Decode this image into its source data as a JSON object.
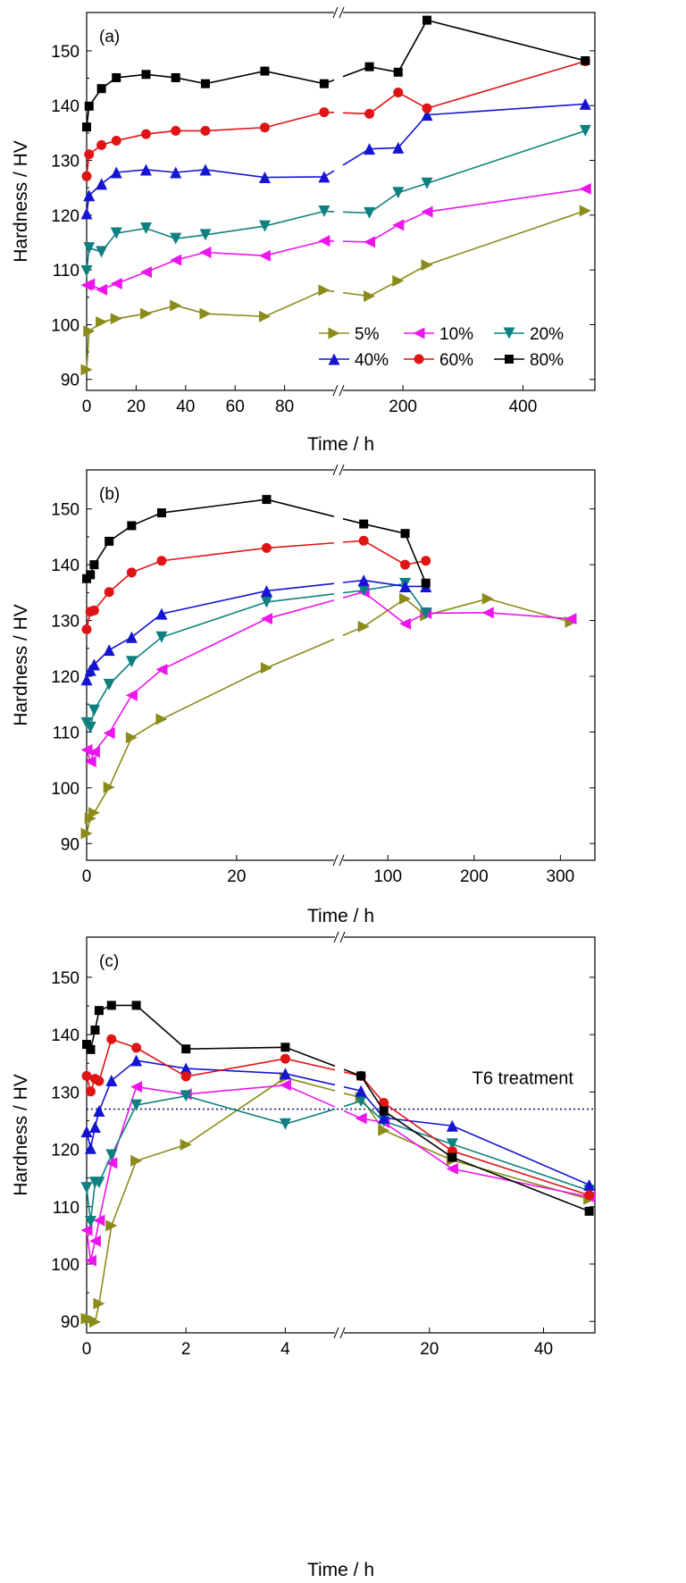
{
  "colors": {
    "5%": "#8b8b1a",
    "10%": "#ee14ee",
    "20%": "#0f8080",
    "40%": "#1414d2",
    "60%": "#e01414",
    "80%": "#000000"
  },
  "markers": {
    "5%": "triangle-right",
    "10%": "triangle-left",
    "20%": "triangle-down",
    "40%": "triangle-up",
    "60%": "circle",
    "80%": "square"
  },
  "chart_data": [
    {
      "type": "line",
      "panel_label": "(a)",
      "xlabel": "Time / h",
      "ylabel": "Hardness / HV",
      "ylim": [
        88,
        157
      ],
      "yticks": [
        90,
        100,
        110,
        120,
        130,
        140,
        150
      ],
      "x_segments": [
        {
          "domain": [
            0,
            100
          ],
          "ticks": [
            0,
            20,
            40,
            60,
            80
          ],
          "labels": [
            "0",
            "20",
            "40",
            "60",
            "80"
          ]
        },
        {
          "domain": [
            100,
            520
          ],
          "ticks": [
            200,
            400
          ],
          "labels": [
            "200",
            "400"
          ]
        }
      ],
      "axis_break": true,
      "legend": {
        "position": "bottom-right",
        "columns": 3,
        "order": [
          "5%",
          "10%",
          "20%",
          "40%",
          "60%",
          "80%"
        ]
      },
      "series": [
        {
          "name": "5%",
          "x": [
            0,
            1,
            6,
            12,
            24,
            36,
            48,
            72,
            96,
            144,
            192,
            240,
            504
          ],
          "y": [
            91.8,
            98.8,
            100.5,
            101.1,
            102,
            103.5,
            102,
            101.5,
            106.3,
            105.2,
            108,
            110.9,
            120.8
          ]
        },
        {
          "name": "10%",
          "x": [
            0,
            1,
            6,
            12,
            24,
            36,
            48,
            72,
            96,
            144,
            192,
            240,
            504
          ],
          "y": [
            107.2,
            107.4,
            106.4,
            107.5,
            109.6,
            111.8,
            113.2,
            112.6,
            115.3,
            115.1,
            118.2,
            120.6,
            124.8
          ]
        },
        {
          "name": "20%",
          "x": [
            0,
            1,
            6,
            12,
            24,
            36,
            48,
            72,
            96,
            144,
            192,
            240,
            504
          ],
          "y": [
            109.8,
            114,
            113.3,
            116.7,
            117.6,
            115.7,
            116.4,
            118,
            120.7,
            120.4,
            124.1,
            125.8,
            135.4
          ]
        },
        {
          "name": "40%",
          "x": [
            0,
            1,
            6,
            12,
            24,
            36,
            48,
            72,
            96,
            144,
            192,
            240,
            504
          ],
          "y": [
            120.3,
            123.6,
            125.7,
            127.8,
            128.3,
            127.8,
            128.3,
            126.9,
            127,
            132.1,
            132.3,
            138.3,
            140.3
          ]
        },
        {
          "name": "60%",
          "x": [
            0,
            1,
            6,
            12,
            24,
            36,
            48,
            72,
            96,
            144,
            192,
            240,
            504
          ],
          "y": [
            127.1,
            131.1,
            132.8,
            133.6,
            134.8,
            135.4,
            135.4,
            136,
            138.8,
            138.5,
            142.4,
            139.5,
            148.1
          ]
        },
        {
          "name": "80%",
          "x": [
            0,
            1,
            6,
            12,
            24,
            36,
            48,
            72,
            96,
            144,
            192,
            240,
            504
          ],
          "y": [
            136.1,
            139.9,
            143.1,
            145.1,
            145.7,
            145.1,
            144,
            146.3,
            144,
            147.1,
            146.1,
            155.6,
            148.2
          ]
        }
      ]
    },
    {
      "type": "line",
      "panel_label": "(b)",
      "xlabel": "Time / h",
      "ylabel": "Hardness / HV",
      "ylim": [
        87,
        157
      ],
      "yticks": [
        90,
        100,
        110,
        120,
        130,
        140,
        150
      ],
      "x_segments": [
        {
          "domain": [
            0,
            33
          ],
          "ticks": [
            0,
            20
          ],
          "labels": [
            "0",
            "20"
          ]
        },
        {
          "domain": [
            48,
            340
          ],
          "ticks": [
            100,
            200,
            300
          ],
          "labels": [
            "100",
            "200",
            "300"
          ]
        }
      ],
      "axis_break": true,
      "series": [
        {
          "name": "5%",
          "x": [
            0,
            0.5,
            1,
            3,
            6,
            10,
            24,
            72,
            120,
            144,
            216,
            312
          ],
          "y": [
            91.8,
            94.5,
            95.5,
            100.1,
            109,
            112.3,
            121.5,
            128.9,
            133.9,
            130.9,
            133.9,
            129.7
          ]
        },
        {
          "name": "10%",
          "x": [
            0,
            0.5,
            1,
            3,
            6,
            10,
            24,
            72,
            120,
            144,
            216,
            312
          ],
          "y": [
            106.8,
            104.7,
            106.4,
            109.8,
            116.6,
            121.2,
            130.3,
            135.1,
            129.4,
            131.3,
            131.4,
            130.3
          ]
        },
        {
          "name": "20%",
          "x": [
            0,
            0.5,
            1,
            3,
            6,
            10,
            24,
            72,
            120,
            144
          ],
          "y": [
            111.6,
            110.8,
            113.9,
            118.5,
            122.6,
            127,
            133.3,
            135.4,
            136.6,
            131.3
          ]
        },
        {
          "name": "40%",
          "x": [
            0,
            0.5,
            1,
            3,
            6,
            10,
            24,
            72,
            120,
            144
          ],
          "y": [
            119.4,
            121.1,
            122.1,
            124.7,
            127,
            131.2,
            135.3,
            137.2,
            136.1,
            136.1
          ]
        },
        {
          "name": "60%",
          "x": [
            0,
            0.5,
            1,
            3,
            6,
            10,
            24,
            72,
            120,
            144
          ],
          "y": [
            128.4,
            131.6,
            131.8,
            135.1,
            138.6,
            140.7,
            143,
            144.3,
            140,
            140.7
          ]
        },
        {
          "name": "80%",
          "x": [
            0,
            0.5,
            1,
            3,
            6,
            10,
            24,
            72,
            120,
            144
          ],
          "y": [
            137.5,
            138.2,
            140,
            144.2,
            147,
            149.3,
            151.7,
            147.3,
            145.6,
            136.7
          ]
        }
      ]
    },
    {
      "type": "line",
      "panel_label": "(c)",
      "xlabel": "Time / h",
      "ylabel": "Hardness / HV",
      "ylim": [
        88,
        157
      ],
      "yticks": [
        90,
        100,
        110,
        120,
        130,
        140,
        150
      ],
      "x_segments": [
        {
          "domain": [
            0,
            5
          ],
          "ticks": [
            0,
            2,
            4
          ],
          "labels": [
            "0",
            "2",
            "4"
          ]
        },
        {
          "domain": [
            5,
            49
          ],
          "ticks": [
            20,
            40
          ],
          "labels": [
            "20",
            "40"
          ]
        }
      ],
      "axis_break": true,
      "reference_line": {
        "y": 127,
        "style": "dotted",
        "label": "T6 treatment"
      },
      "series": [
        {
          "name": "5%",
          "x": [
            0,
            0.08,
            0.17,
            0.25,
            0.5,
            1,
            2,
            4,
            8,
            12,
            24,
            48
          ],
          "y": [
            90.5,
            90.4,
            89.9,
            93.1,
            106.7,
            118,
            120.8,
            132.5,
            129,
            123.3,
            118.1,
            111.3
          ]
        },
        {
          "name": "10%",
          "x": [
            0,
            0.08,
            0.17,
            0.25,
            0.5,
            1,
            2,
            4,
            8,
            12,
            24,
            48
          ],
          "y": [
            105.9,
            100.6,
            104,
            107.6,
            117.6,
            130.9,
            129.6,
            131.2,
            125.4,
            124.7,
            116.6,
            111.7
          ]
        },
        {
          "name": "20%",
          "x": [
            0,
            0.08,
            0.17,
            0.25,
            0.5,
            1,
            2,
            4,
            8,
            12,
            24,
            48
          ],
          "y": [
            113.3,
            107.4,
            114.2,
            114.2,
            119,
            127.7,
            129.3,
            124.4,
            128.4,
            124.9,
            120.9,
            112.8
          ]
        },
        {
          "name": "40%",
          "x": [
            0,
            0.08,
            0.17,
            0.25,
            0.5,
            1,
            2,
            4,
            8,
            12,
            24,
            48
          ],
          "y": [
            123.1,
            120.2,
            123.9,
            126.7,
            132,
            135.5,
            134.1,
            133.2,
            130.2,
            125.5,
            124.1,
            113.8
          ]
        },
        {
          "name": "60%",
          "x": [
            0,
            0.08,
            0.17,
            0.25,
            0.5,
            1,
            2,
            4,
            8,
            12,
            24,
            48
          ],
          "y": [
            132.8,
            130.1,
            132.3,
            131.9,
            139.2,
            137.7,
            132.7,
            135.8,
            132.8,
            128.1,
            119.7,
            112
          ]
        },
        {
          "name": "80%",
          "x": [
            0,
            0.08,
            0.17,
            0.25,
            0.5,
            1,
            2,
            4,
            8,
            12,
            24,
            48
          ],
          "y": [
            138.3,
            137.4,
            140.8,
            144.2,
            145.1,
            145.1,
            137.5,
            137.8,
            132.8,
            126.7,
            118.6,
            109.2
          ]
        }
      ]
    }
  ]
}
